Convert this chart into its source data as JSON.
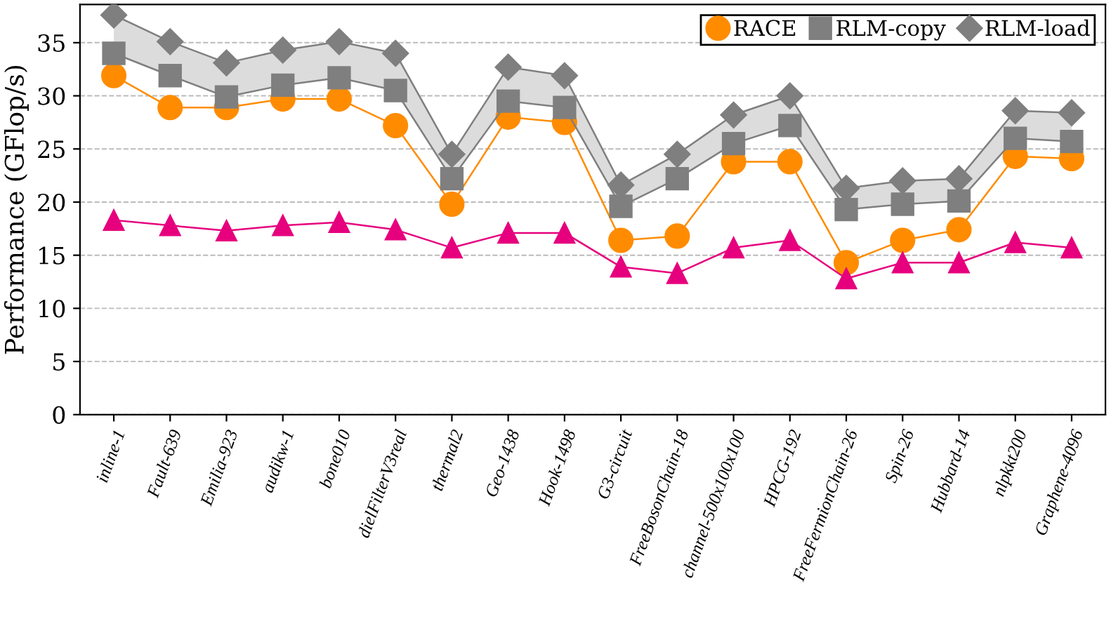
{
  "chart_data": {
    "type": "line",
    "ylabel": "Performance (GFlop/s)",
    "categories": [
      "inline-1",
      "Fault-639",
      "Emilia-923",
      "audikw-1",
      "bone010",
      "dielFilterV3real",
      "thermal2",
      "Geo-1438",
      "Hook-1498",
      "G3-circuit",
      "FreeBosonChain-18",
      "channel-500x100x100",
      "HPCG-192",
      "FreeFermionChain-26",
      "Spin-26",
      "Hubbard-14",
      "nlpkkt200",
      "Graphene-4096"
    ],
    "series": [
      {
        "name": "RACE",
        "color": "#ff8c00",
        "marker": "circle",
        "values": [
          31.9,
          28.9,
          28.9,
          29.7,
          29.7,
          27.2,
          19.8,
          28.0,
          27.5,
          16.4,
          16.8,
          23.8,
          23.8,
          14.3,
          16.4,
          17.4,
          24.3,
          24.1
        ]
      },
      {
        "color": "#e6007e",
        "marker": "triangle",
        "values": [
          18.3,
          17.8,
          17.3,
          17.8,
          18.1,
          17.4,
          15.7,
          17.1,
          17.1,
          13.9,
          13.3,
          15.7,
          16.4,
          12.8,
          14.3,
          14.3,
          16.2,
          15.7
        ]
      },
      {
        "name": "RLM-copy",
        "color": "#7f7f7f",
        "marker": "square",
        "values": [
          34.0,
          31.9,
          29.9,
          31.0,
          31.7,
          30.5,
          22.2,
          29.5,
          28.9,
          19.6,
          22.2,
          25.5,
          27.2,
          19.3,
          19.8,
          20.1,
          26.0,
          25.7
        ]
      },
      {
        "name": "RLM-load",
        "color": "#7f7f7f",
        "marker": "diamond",
        "values": [
          37.6,
          35.1,
          33.1,
          34.3,
          35.1,
          34.0,
          24.5,
          32.7,
          31.9,
          21.6,
          24.5,
          28.2,
          30.0,
          21.3,
          22.0,
          22.2,
          28.6,
          28.4
        ],
        "lower": [
          34.0,
          31.9,
          29.9,
          31.0,
          31.7,
          30.5,
          22.2,
          29.5,
          28.9,
          19.6,
          22.2,
          25.5,
          27.2,
          19.3,
          19.8,
          20.1,
          26.0,
          25.7
        ],
        "upper": [
          37.6,
          35.1,
          33.1,
          34.3,
          35.1,
          34.0,
          24.5,
          32.7,
          31.9,
          21.6,
          24.5,
          28.2,
          30.0,
          21.3,
          22.0,
          22.2,
          28.6,
          28.4
        ]
      }
    ],
    "ylim": [
      0,
      38.6
    ],
    "yticks": [
      0,
      5,
      10,
      15,
      20,
      25,
      30,
      35
    ],
    "grid": "y",
    "legend": "top right",
    "line_style": "solid"
  }
}
